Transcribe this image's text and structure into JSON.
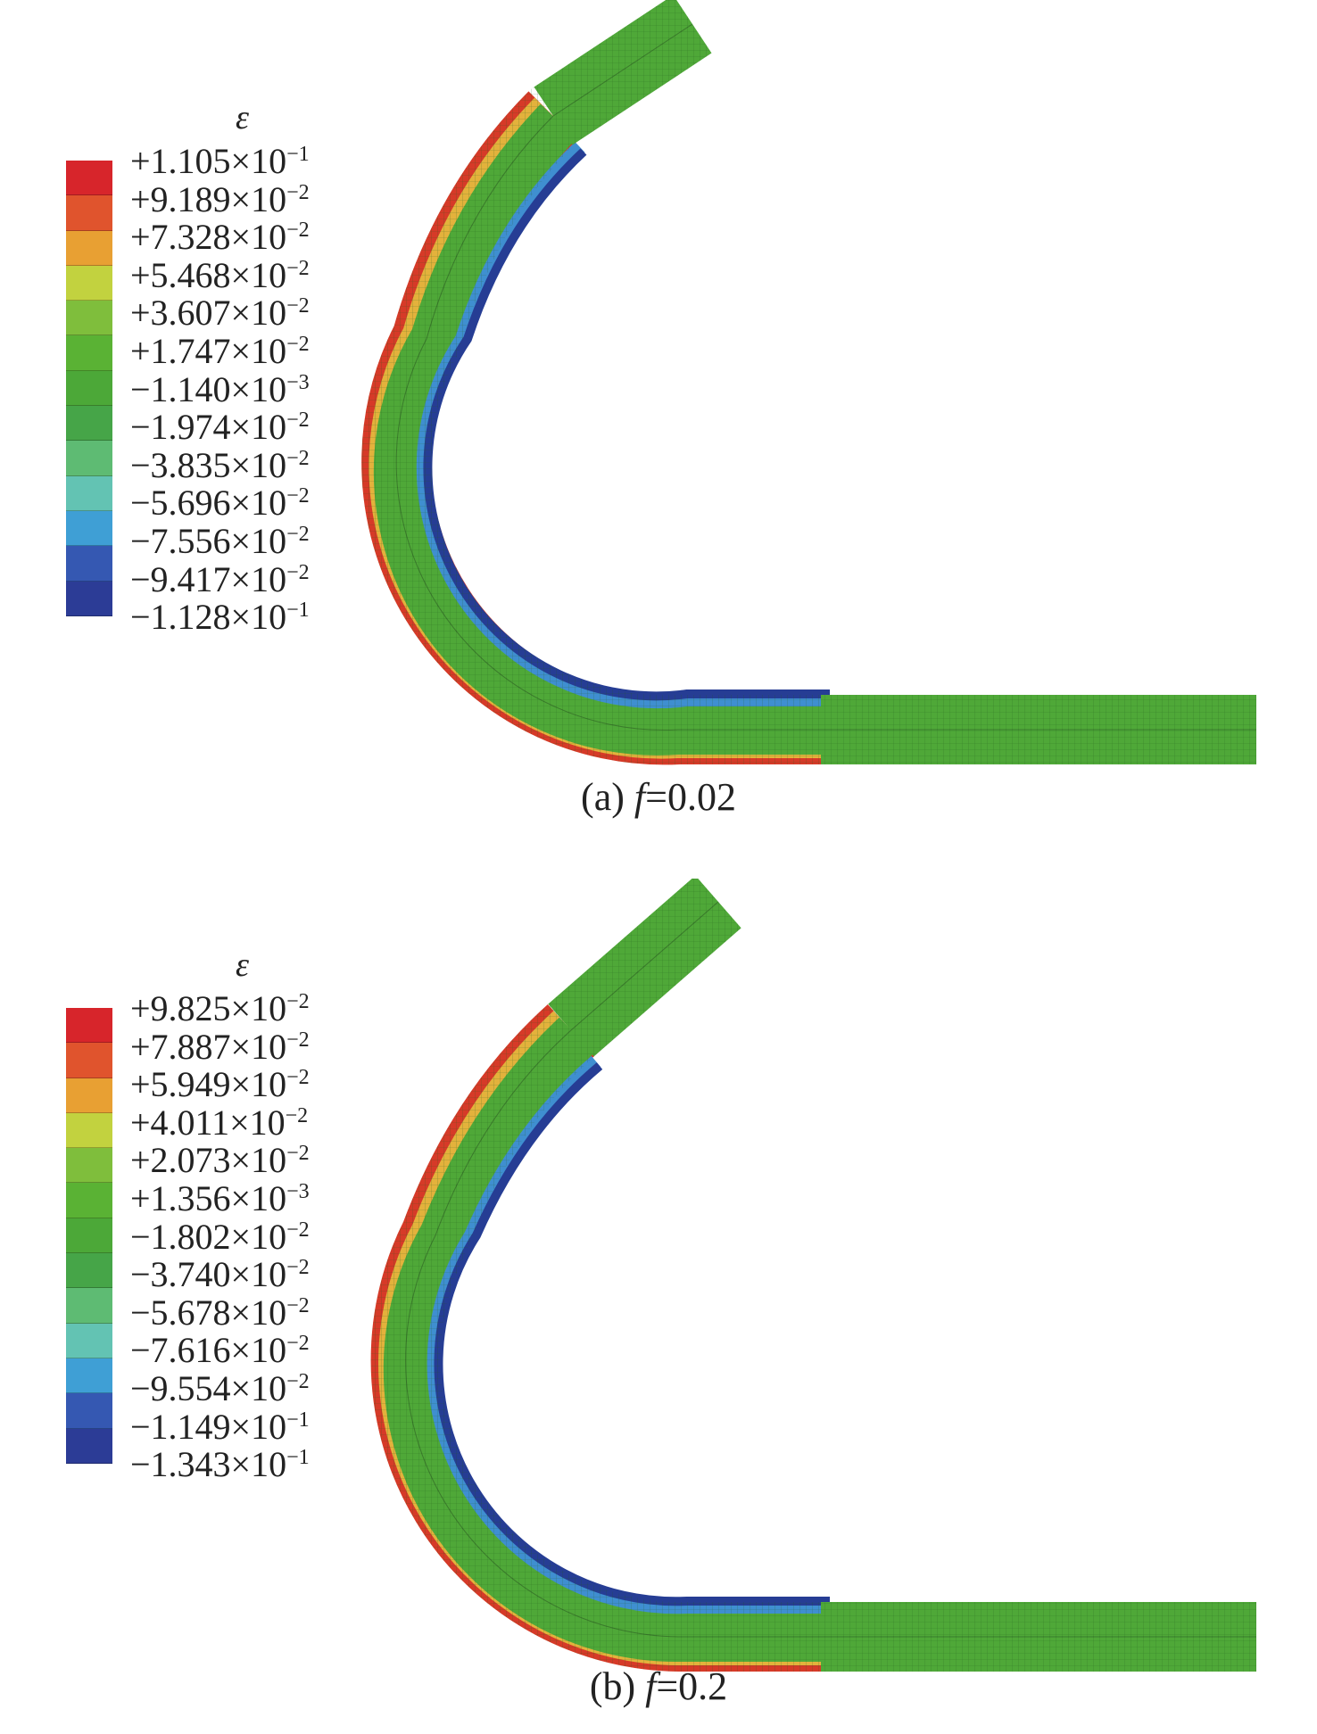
{
  "panels": [
    {
      "caption_prefix": "(a) ",
      "caption_var": "f",
      "caption_value": "=0.02",
      "legend": {
        "symbol": "ε",
        "labels": [
          {
            "mantissa": "+1.105×10",
            "exp": "−1"
          },
          {
            "mantissa": "+9.189×10",
            "exp": "−2"
          },
          {
            "mantissa": "+7.328×10",
            "exp": "−2"
          },
          {
            "mantissa": "+5.468×10",
            "exp": "−2"
          },
          {
            "mantissa": "+3.607×10",
            "exp": "−2"
          },
          {
            "mantissa": "+1.747×10",
            "exp": "−2"
          },
          {
            "mantissa": "−1.140×10",
            "exp": "−3"
          },
          {
            "mantissa": "−1.974×10",
            "exp": "−2"
          },
          {
            "mantissa": "−3.835×10",
            "exp": "−2"
          },
          {
            "mantissa": "−5.696×10",
            "exp": "−2"
          },
          {
            "mantissa": "−7.556×10",
            "exp": "−2"
          },
          {
            "mantissa": "−9.417×10",
            "exp": "−2"
          },
          {
            "mantissa": "−1.128×10",
            "exp": "−1"
          }
        ]
      }
    },
    {
      "caption_prefix": "(b) ",
      "caption_var": "f",
      "caption_value": "=0.2",
      "legend": {
        "symbol": "ε",
        "labels": [
          {
            "mantissa": "+9.825×10",
            "exp": "−2"
          },
          {
            "mantissa": "+7.887×10",
            "exp": "−2"
          },
          {
            "mantissa": "+5.949×10",
            "exp": "−2"
          },
          {
            "mantissa": "+4.011×10",
            "exp": "−2"
          },
          {
            "mantissa": "+2.073×10",
            "exp": "−2"
          },
          {
            "mantissa": "+1.356×10",
            "exp": "−3"
          },
          {
            "mantissa": "−1.802×10",
            "exp": "−2"
          },
          {
            "mantissa": "−3.740×10",
            "exp": "−2"
          },
          {
            "mantissa": "−5.678×10",
            "exp": "−2"
          },
          {
            "mantissa": "−7.616×10",
            "exp": "−2"
          },
          {
            "mantissa": "−9.554×10",
            "exp": "−2"
          },
          {
            "mantissa": "−1.149×10",
            "exp": "−1"
          },
          {
            "mantissa": "−1.343×10",
            "exp": "−1"
          }
        ]
      }
    }
  ],
  "colormap": [
    "#d7252b",
    "#e0542d",
    "#e8a033",
    "#c2d23f",
    "#7fbe3c",
    "#5ab234",
    "#4ca838",
    "#46a548",
    "#5ebb73",
    "#63c3b3",
    "#3f9fd5",
    "#3558b2",
    "#2c3c96"
  ],
  "pipe_colors": {
    "base": "#4fa838",
    "outer_hot": "#d63a28",
    "outer_warm": "#e3b23c",
    "inner_cold": "#263d94",
    "inner_cool": "#3f8fd0",
    "mesh": "#1f5a1b"
  }
}
